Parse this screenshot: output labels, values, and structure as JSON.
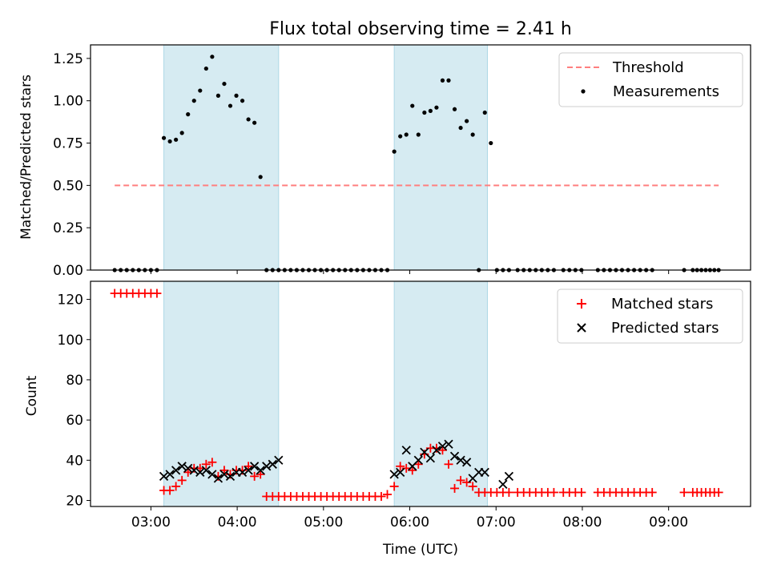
{
  "title": "Flux total observing time = 2.41 h",
  "colors": {
    "threshold": "#ff7f7f",
    "measurement": "#000000",
    "matched": "#ff0000",
    "predicted": "#000000",
    "shade": "#add8e6"
  },
  "chart_data": [
    {
      "type": "scatter",
      "title": "Flux total observing time = 2.41 h",
      "xlabel": "",
      "ylabel": "Matched/Predicted stars",
      "xlim": [
        2.3,
        9.95
      ],
      "ylim": [
        0,
        1.33
      ],
      "yticks": [
        0.0,
        0.25,
        0.5,
        0.75,
        1.0,
        1.25
      ],
      "ytick_labels": [
        "0.00",
        "0.25",
        "0.50",
        "0.75",
        "1.00",
        "1.25"
      ],
      "xticks": [
        3,
        4,
        5,
        6,
        7,
        8,
        9
      ],
      "shaded_intervals": [
        [
          3.15,
          4.48
        ],
        [
          5.82,
          6.9
        ]
      ],
      "legend_position": "top-right",
      "threshold": {
        "name": "Threshold",
        "x": [
          2.58,
          9.58
        ],
        "y": 0.5
      },
      "series": [
        {
          "name": "Measurements",
          "x": [
            2.58,
            2.65,
            2.72,
            2.79,
            2.86,
            2.93,
            3.0,
            3.07,
            3.15,
            3.22,
            3.29,
            3.36,
            3.43,
            3.5,
            3.57,
            3.64,
            3.71,
            3.78,
            3.85,
            3.92,
            3.99,
            4.06,
            4.13,
            4.2,
            4.27,
            4.34,
            4.41,
            4.48,
            4.55,
            4.62,
            4.69,
            4.76,
            4.83,
            4.9,
            4.97,
            5.04,
            5.11,
            5.18,
            5.25,
            5.32,
            5.39,
            5.46,
            5.53,
            5.6,
            5.67,
            5.74,
            5.82,
            5.89,
            5.96,
            6.03,
            6.1,
            6.17,
            6.24,
            6.31,
            6.38,
            6.45,
            6.52,
            6.59,
            6.66,
            6.73,
            6.8,
            6.87,
            6.94,
            7.01,
            7.08,
            7.15,
            7.25,
            7.32,
            7.39,
            7.46,
            7.53,
            7.6,
            7.67,
            7.78,
            7.85,
            7.92,
            7.99,
            8.18,
            8.25,
            8.32,
            8.39,
            8.46,
            8.53,
            8.6,
            8.67,
            8.74,
            8.81,
            9.18,
            9.28,
            9.33,
            9.38,
            9.43,
            9.48,
            9.53,
            9.58
          ],
          "y": [
            0,
            0,
            0,
            0,
            0,
            0,
            0,
            0,
            0.78,
            0.76,
            0.77,
            0.81,
            0.92,
            1.0,
            1.06,
            1.19,
            1.26,
            1.03,
            1.1,
            0.97,
            1.03,
            1.0,
            0.89,
            0.87,
            0.55,
            0,
            0,
            0,
            0,
            0,
            0,
            0,
            0,
            0,
            0,
            0,
            0,
            0,
            0,
            0,
            0,
            0,
            0,
            0,
            0,
            0,
            0.7,
            0.79,
            0.8,
            0.97,
            0.8,
            0.93,
            0.94,
            0.96,
            1.12,
            1.12,
            0.95,
            0.84,
            0.88,
            0.8,
            0,
            0.93,
            0.75,
            0,
            0,
            0,
            0,
            0,
            0,
            0,
            0,
            0,
            0,
            0,
            0,
            0,
            0,
            0,
            0,
            0,
            0,
            0,
            0,
            0,
            0,
            0,
            0,
            0,
            0,
            0,
            0,
            0,
            0,
            0,
            0
          ]
        }
      ]
    },
    {
      "type": "scatter",
      "xlabel": "Time (UTC)",
      "ylabel": "Count",
      "xlim": [
        2.3,
        9.95
      ],
      "ylim": [
        17,
        129
      ],
      "yticks": [
        20,
        40,
        60,
        80,
        100,
        120
      ],
      "ytick_labels": [
        "20",
        "40",
        "60",
        "80",
        "100",
        "120"
      ],
      "xticks": [
        3,
        4,
        5,
        6,
        7,
        8,
        9
      ],
      "xtick_labels": [
        "03:00",
        "04:00",
        "05:00",
        "06:00",
        "07:00",
        "08:00",
        "09:00"
      ],
      "shaded_intervals": [
        [
          3.15,
          4.48
        ],
        [
          5.82,
          6.9
        ]
      ],
      "legend_position": "top-right",
      "series": [
        {
          "name": "Matched stars",
          "x": [
            2.58,
            2.65,
            2.72,
            2.79,
            2.86,
            2.93,
            3.0,
            3.07,
            3.15,
            3.22,
            3.29,
            3.36,
            3.43,
            3.5,
            3.57,
            3.64,
            3.71,
            3.78,
            3.85,
            3.92,
            3.99,
            4.06,
            4.13,
            4.2,
            4.27,
            4.34,
            4.41,
            4.48,
            4.55,
            4.62,
            4.69,
            4.76,
            4.83,
            4.9,
            4.97,
            5.04,
            5.11,
            5.18,
            5.25,
            5.32,
            5.39,
            5.46,
            5.53,
            5.6,
            5.67,
            5.74,
            5.82,
            5.89,
            5.96,
            6.03,
            6.1,
            6.17,
            6.24,
            6.31,
            6.38,
            6.45,
            6.52,
            6.59,
            6.66,
            6.73,
            6.8,
            6.87,
            6.94,
            7.01,
            7.08,
            7.15,
            7.25,
            7.32,
            7.39,
            7.46,
            7.53,
            7.6,
            7.67,
            7.78,
            7.85,
            7.92,
            7.99,
            8.18,
            8.25,
            8.32,
            8.39,
            8.46,
            8.53,
            8.6,
            8.67,
            8.74,
            8.81,
            9.18,
            9.28,
            9.33,
            9.38,
            9.43,
            9.48,
            9.53,
            9.58
          ],
          "y": [
            123,
            123,
            123,
            123,
            123,
            123,
            123,
            123,
            25,
            25,
            27,
            30,
            34,
            36,
            36,
            38,
            39,
            32,
            35,
            33,
            35,
            35,
            37,
            32,
            33,
            22,
            22,
            22,
            22,
            22,
            22,
            22,
            22,
            22,
            22,
            22,
            22,
            22,
            22,
            22,
            22,
            22,
            22,
            22,
            22,
            23,
            27,
            37,
            36,
            35,
            38,
            43,
            46,
            46,
            45,
            38,
            26,
            30,
            29,
            27,
            24,
            24,
            24,
            24,
            24,
            24,
            24,
            24,
            24,
            24,
            24,
            24,
            24,
            24,
            24,
            24,
            24,
            24,
            24,
            24,
            24,
            24,
            24,
            24,
            24,
            24,
            24,
            24,
            24,
            24,
            24,
            24,
            24,
            24,
            24
          ]
        },
        {
          "name": "Predicted stars",
          "x": [
            3.15,
            3.22,
            3.29,
            3.36,
            3.43,
            3.5,
            3.57,
            3.64,
            3.71,
            3.78,
            3.85,
            3.92,
            3.99,
            4.06,
            4.13,
            4.2,
            4.27,
            4.34,
            4.41,
            4.48,
            5.82,
            5.89,
            5.96,
            6.03,
            6.1,
            6.17,
            6.24,
            6.31,
            6.38,
            6.45,
            6.52,
            6.59,
            6.66,
            6.73,
            6.8,
            6.87,
            7.08,
            7.15
          ],
          "y": [
            32,
            33,
            35,
            37,
            36,
            35,
            34,
            35,
            33,
            31,
            33,
            32,
            34,
            34,
            35,
            37,
            35,
            37,
            38,
            40,
            33,
            34,
            45,
            37,
            40,
            44,
            41,
            45,
            47,
            48,
            42,
            40,
            39,
            31,
            34,
            34,
            28,
            32
          ]
        }
      ]
    }
  ]
}
